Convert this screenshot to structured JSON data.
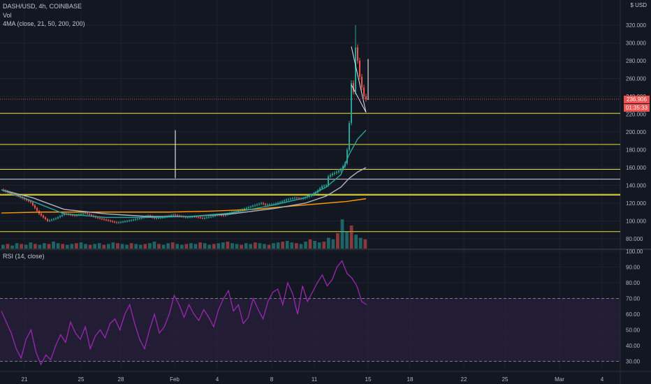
{
  "header": {
    "symbol_line": "DASH/USD, 4h, COINBASE",
    "vol_label": "Vol",
    "ma_label": "4MA (close, 21, 50, 200, 200)",
    "rsi_label": "RSI (14, close)",
    "currency": "$ USD"
  },
  "price_tag": {
    "price": "236.906",
    "countdown": "01:35:33"
  },
  "colors": {
    "background": "#131722",
    "grid": "#1e222d",
    "up": "#26a69a",
    "down": "#ef5350",
    "hline": "#e8e037",
    "white_line": "#d1d4dc",
    "ma21": "#26a69a",
    "ma50": "#b2b5be",
    "ma200": "#ff9800",
    "rsi": "#9c27b0",
    "rsi_band": "#2a1f3d"
  },
  "chart_data": [
    {
      "type": "candlestick",
      "title": "DASH/USD, 4h, COINBASE",
      "x_ticks": [
        "21",
        "25",
        "28",
        "Feb",
        "4",
        "8",
        "11",
        "15",
        "18",
        "22",
        "25",
        "Mar",
        "4"
      ],
      "y_ticks": [
        "320.000",
        "300.000",
        "280.000",
        "260.000",
        "240.000",
        "220.000",
        "200.000",
        "180.000",
        "160.000",
        "140.000",
        "120.000",
        "100.000",
        "80.000"
      ],
      "ylim": [
        75,
        330
      ],
      "price_points": [
        [
          0,
          135
        ],
        [
          8,
          128
        ],
        [
          14,
          121
        ],
        [
          18,
          108
        ],
        [
          22,
          100
        ],
        [
          26,
          103
        ],
        [
          30,
          108
        ],
        [
          35,
          106
        ],
        [
          40,
          109
        ],
        [
          45,
          104
        ],
        [
          50,
          101
        ],
        [
          55,
          98
        ],
        [
          60,
          100
        ],
        [
          66,
          103
        ],
        [
          70,
          106
        ],
        [
          73,
          103
        ],
        [
          77,
          104
        ],
        [
          82,
          107
        ],
        [
          88,
          104
        ],
        [
          92,
          105
        ],
        [
          96,
          103
        ],
        [
          100,
          105
        ],
        [
          103,
          107
        ],
        [
          106,
          106
        ],
        [
          110,
          110
        ],
        [
          115,
          113
        ],
        [
          120,
          117
        ],
        [
          124,
          120
        ],
        [
          126,
          118
        ],
        [
          130,
          119
        ],
        [
          133,
          121
        ],
        [
          136,
          124
        ],
        [
          140,
          126
        ],
        [
          143,
          125
        ],
        [
          147,
          128
        ],
        [
          150,
          132
        ],
        [
          153,
          139
        ],
        [
          155,
          140
        ],
        [
          156,
          150
        ],
        [
          158,
          153
        ],
        [
          160,
          155
        ],
        [
          162,
          158
        ],
        [
          164,
          165
        ],
        [
          165,
          180
        ],
        [
          166,
          210
        ],
        [
          167,
          255
        ],
        [
          168,
          245
        ],
        [
          169,
          295
        ],
        [
          170,
          280
        ],
        [
          171,
          262
        ],
        [
          172,
          250
        ],
        [
          173,
          240
        ],
        [
          174,
          236.9
        ]
      ],
      "wick_high_max": 320,
      "horizontal_levels": [
        {
          "price": 221,
          "color": "yellow"
        },
        {
          "price": 186,
          "color": "yellow"
        },
        {
          "price": 158,
          "color": "yellow"
        },
        {
          "price": 147,
          "color": "white"
        },
        {
          "price": 130,
          "color": "yellow"
        },
        {
          "price": 129,
          "color": "yellow"
        },
        {
          "price": 88,
          "color": "yellow"
        }
      ],
      "vertical_marker": {
        "day": 83,
        "price_low": 148,
        "price_high": 202
      },
      "ma21_points": [
        [
          0,
          135
        ],
        [
          15,
          122
        ],
        [
          30,
          108
        ],
        [
          50,
          104
        ],
        [
          70,
          104
        ],
        [
          90,
          105
        ],
        [
          110,
          109
        ],
        [
          130,
          118
        ],
        [
          145,
          126
        ],
        [
          155,
          138
        ],
        [
          162,
          152
        ],
        [
          166,
          175
        ],
        [
          170,
          192
        ],
        [
          174,
          202
        ]
      ],
      "ma50_points": [
        [
          0,
          135
        ],
        [
          15,
          126
        ],
        [
          30,
          113
        ],
        [
          50,
          108
        ],
        [
          70,
          105
        ],
        [
          90,
          105
        ],
        [
          110,
          108
        ],
        [
          130,
          114
        ],
        [
          145,
          120
        ],
        [
          155,
          128
        ],
        [
          162,
          138
        ],
        [
          166,
          148
        ],
        [
          170,
          155
        ],
        [
          174,
          160
        ]
      ],
      "ma200_points": [
        [
          0,
          109
        ],
        [
          20,
          110
        ],
        [
          50,
          110
        ],
        [
          80,
          110
        ],
        [
          100,
          111
        ],
        [
          120,
          113
        ],
        [
          140,
          117
        ],
        [
          155,
          120
        ],
        [
          165,
          122
        ],
        [
          174,
          125
        ]
      ],
      "triangle": [
        [
          167,
          296
        ],
        [
          174,
          222
        ],
        [
          167,
          253
        ]
      ],
      "volume": [
        5,
        6,
        4,
        7,
        6,
        5,
        8,
        6,
        5,
        7,
        6,
        9,
        7,
        6,
        5,
        6,
        7,
        8,
        6,
        5,
        6,
        7,
        5,
        6,
        8,
        7,
        6,
        5,
        7,
        6,
        5,
        6,
        7,
        9,
        6,
        5,
        7,
        8,
        6,
        5,
        6,
        7,
        6,
        8,
        7,
        5,
        6,
        7,
        8,
        9,
        7,
        6,
        5,
        7,
        6,
        8,
        7,
        6,
        5,
        7,
        8,
        9,
        10,
        8,
        7,
        6,
        9,
        12,
        10,
        8,
        9,
        14,
        12,
        20,
        38,
        22,
        30,
        18,
        14,
        12
      ]
    },
    {
      "type": "line",
      "title": "RSI (14, close)",
      "y_ticks": [
        "100.00",
        "90.00",
        "80.00",
        "70.00",
        "60.00",
        "50.00",
        "40.00",
        "30.00"
      ],
      "ylim": [
        24,
        100
      ],
      "bands": [
        30,
        70
      ],
      "series": [
        {
          "values": [
            62,
            55,
            48,
            38,
            32,
            44,
            50,
            36,
            28,
            34,
            31,
            40,
            47,
            42,
            55,
            48,
            44,
            52,
            38,
            46,
            50,
            45,
            54,
            57,
            50,
            60,
            66,
            54,
            44,
            38,
            50,
            60,
            48,
            52,
            60,
            72,
            66,
            58,
            66,
            60,
            56,
            63,
            58,
            52,
            63,
            70,
            75,
            62,
            66,
            54,
            58,
            70,
            63,
            57,
            68,
            74,
            76,
            66,
            80,
            73,
            60,
            78,
            68,
            74,
            80,
            85,
            78,
            82,
            90,
            94,
            86,
            83,
            78,
            68,
            66
          ]
        }
      ]
    }
  ]
}
